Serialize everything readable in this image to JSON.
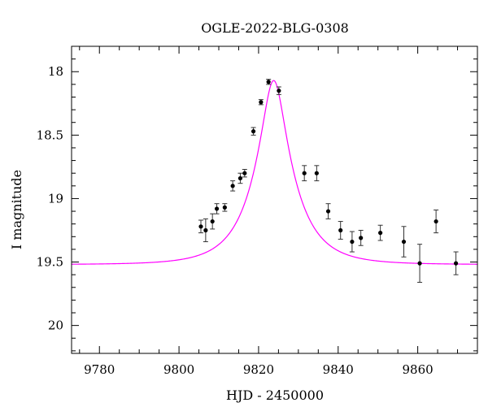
{
  "chart_data": {
    "type": "scatter",
    "title": "OGLE-2022-BLG-0308",
    "xlabel": "HJD - 2450000",
    "ylabel": "I magnitude",
    "xlim": [
      9773,
      9875
    ],
    "ylim": [
      20.22,
      17.8
    ],
    "y_inverted": true,
    "xticks": [
      9780,
      9800,
      9820,
      9840,
      9860
    ],
    "xtick_labels": [
      "9780",
      "9800",
      "9820",
      "9840",
      "9860"
    ],
    "yticks": [
      18,
      18.5,
      19,
      19.5,
      20
    ],
    "ytick_labels": [
      "18",
      "18.5",
      "19",
      "19.5",
      "20"
    ],
    "grid": false,
    "series": [
      {
        "kind": "points",
        "color": "#000000",
        "x": [
          9805.5,
          9806.7,
          9808.4,
          9809.5,
          9811.5,
          9813.5,
          9815.4,
          9816.5,
          9818.7,
          9820.6,
          9822.5,
          9825.1,
          9831.5,
          9834.6,
          9837.5,
          9840.6,
          9843.5,
          9845.7,
          9850.6,
          9856.5,
          9860.5,
          9864.6,
          9869.6
        ],
        "y": [
          19.22,
          19.25,
          19.18,
          19.08,
          19.07,
          18.9,
          18.84,
          18.8,
          18.47,
          18.24,
          18.08,
          18.15,
          18.8,
          18.8,
          19.1,
          19.25,
          19.34,
          19.31,
          19.27,
          19.34,
          19.51,
          19.18,
          19.51
        ],
        "yerr": [
          0.05,
          0.09,
          0.06,
          0.04,
          0.03,
          0.04,
          0.04,
          0.03,
          0.03,
          0.02,
          0.02,
          0.03,
          0.06,
          0.06,
          0.06,
          0.07,
          0.08,
          0.06,
          0.06,
          0.12,
          0.15,
          0.09,
          0.09
        ]
      },
      {
        "kind": "model",
        "color": "#ff00ff",
        "model": "point-lens",
        "params": {
          "t0": 9823.8,
          "u0": 0.27,
          "tE": 10.0,
          "baseline": 19.52
        }
      }
    ]
  }
}
